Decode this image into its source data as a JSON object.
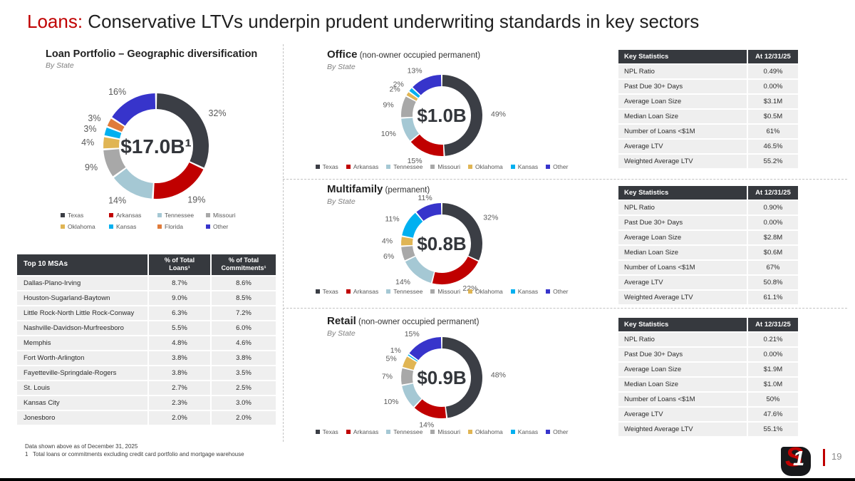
{
  "title": {
    "prefix": "Loans:",
    "rest": " Conservative LTVs underpin prudent underwriting standards in key sectors"
  },
  "portfolio": {
    "title": "Loan Portfolio – Geographic diversification",
    "subtitle": "By State",
    "chart": {
      "type": "donut",
      "center_label": "$17.0B¹",
      "series": [
        {
          "name": "Texas",
          "pct": 32,
          "color": "#3B3E45"
        },
        {
          "name": "Arkansas",
          "pct": 19,
          "color": "#C00000"
        },
        {
          "name": "Tennessee",
          "pct": 14,
          "color": "#A5C8D4"
        },
        {
          "name": "Missouri",
          "pct": 9,
          "color": "#A8A8A8"
        },
        {
          "name": "Oklahoma",
          "pct": 4,
          "color": "#E0B554"
        },
        {
          "name": "Kansas",
          "pct": 3,
          "color": "#00B0F0"
        },
        {
          "name": "Florida",
          "pct": 3,
          "color": "#E07B3A"
        },
        {
          "name": "Other",
          "pct": 16,
          "color": "#3734CB"
        }
      ]
    }
  },
  "msa_table": {
    "headers": [
      "Top 10 MSAs",
      "% of Total Loans¹",
      "% of Total Commitments¹"
    ],
    "rows": [
      [
        "Dallas-Plano-Irving",
        "8.7%",
        "8.6%"
      ],
      [
        "Houston-Sugarland-Baytown",
        "9.0%",
        "8.5%"
      ],
      [
        "Little Rock-North Little Rock-Conway",
        "6.3%",
        "7.2%"
      ],
      [
        "Nashville-Davidson-Murfreesboro",
        "5.5%",
        "6.0%"
      ],
      [
        "Memphis",
        "4.8%",
        "4.6%"
      ],
      [
        "Fort Worth-Arlington",
        "3.8%",
        "3.8%"
      ],
      [
        "Fayetteville-Springdale-Rogers",
        "3.8%",
        "3.5%"
      ],
      [
        "St. Louis",
        "2.7%",
        "2.5%"
      ],
      [
        "Kansas City",
        "2.3%",
        "3.0%"
      ],
      [
        "Jonesboro",
        "2.0%",
        "2.0%"
      ]
    ]
  },
  "sections": [
    {
      "title": "Office",
      "title_suffix": " (non-owner occupied permanent)",
      "subtitle": "By State",
      "chart": {
        "type": "donut",
        "center_label": "$1.0B",
        "series": [
          {
            "name": "Texas",
            "pct": 49,
            "color": "#3B3E45"
          },
          {
            "name": "Arkansas",
            "pct": 15,
            "color": "#C00000"
          },
          {
            "name": "Tennessee",
            "pct": 10,
            "color": "#A5C8D4"
          },
          {
            "name": "Missouri",
            "pct": 9,
            "color": "#A8A8A8"
          },
          {
            "name": "Oklahoma",
            "pct": 2,
            "color": "#E0B554"
          },
          {
            "name": "Kansas",
            "pct": 2,
            "color": "#00B0F0"
          },
          {
            "name": "Other",
            "pct": 13,
            "color": "#3734CB"
          }
        ]
      },
      "stats": {
        "headers": [
          "Key Statistics",
          "At 12/31/25"
        ],
        "rows": [
          [
            "NPL Ratio",
            "0.49%"
          ],
          [
            "Past Due 30+ Days",
            "0.00%"
          ],
          [
            "Average Loan Size",
            "$3.1M"
          ],
          [
            "Median Loan Size",
            "$0.5M"
          ],
          [
            "Number of Loans <$1M",
            "61%"
          ],
          [
            "Average LTV",
            "46.5%"
          ],
          [
            "Weighted Average LTV",
            "55.2%"
          ]
        ]
      }
    },
    {
      "title": "Multifamily",
      "title_suffix": " (permanent)",
      "subtitle": "By State",
      "chart": {
        "type": "donut",
        "center_label": "$0.8B",
        "series": [
          {
            "name": "Texas",
            "pct": 32,
            "color": "#3B3E45"
          },
          {
            "name": "Arkansas",
            "pct": 22,
            "color": "#C00000"
          },
          {
            "name": "Tennessee",
            "pct": 14,
            "color": "#A5C8D4"
          },
          {
            "name": "Missouri",
            "pct": 6,
            "color": "#A8A8A8"
          },
          {
            "name": "Oklahoma",
            "pct": 4,
            "color": "#E0B554"
          },
          {
            "name": "Kansas",
            "pct": 11,
            "color": "#00B0F0"
          },
          {
            "name": "Other",
            "pct": 11,
            "color": "#3734CB"
          }
        ]
      },
      "stats": {
        "headers": [
          "Key Statistics",
          "At 12/31/25"
        ],
        "rows": [
          [
            "NPL Ratio",
            "0.90%"
          ],
          [
            "Past Due 30+ Days",
            "0.00%"
          ],
          [
            "Average Loan Size",
            "$2.8M"
          ],
          [
            "Median Loan Size",
            "$0.6M"
          ],
          [
            "Number of Loans <$1M",
            "67%"
          ],
          [
            "Average LTV",
            "50.8%"
          ],
          [
            "Weighted Average LTV",
            "61.1%"
          ]
        ]
      }
    },
    {
      "title": "Retail",
      "title_suffix": " (non-owner occupied permanent)",
      "subtitle": "By State",
      "chart": {
        "type": "donut",
        "center_label": "$0.9B",
        "series": [
          {
            "name": "Texas",
            "pct": 48,
            "color": "#3B3E45"
          },
          {
            "name": "Arkansas",
            "pct": 14,
            "color": "#C00000"
          },
          {
            "name": "Tennessee",
            "pct": 10,
            "color": "#A5C8D4"
          },
          {
            "name": "Missouri",
            "pct": 7,
            "color": "#A8A8A8"
          },
          {
            "name": "Oklahoma",
            "pct": 5,
            "color": "#E0B554"
          },
          {
            "name": "Kansas",
            "pct": 1,
            "color": "#00B0F0"
          },
          {
            "name": "Other",
            "pct": 15,
            "color": "#3734CB"
          }
        ]
      },
      "stats": {
        "headers": [
          "Key Statistics",
          "At 12/31/25"
        ],
        "rows": [
          [
            "NPL Ratio",
            "0.21%"
          ],
          [
            "Past Due 30+ Days",
            "0.00%"
          ],
          [
            "Average Loan Size",
            "$1.9M"
          ],
          [
            "Median Loan Size",
            "$1.0M"
          ],
          [
            "Number of Loans <$1M",
            "50%"
          ],
          [
            "Average LTV",
            "47.6%"
          ],
          [
            "Weighted Average LTV",
            "55.1%"
          ]
        ]
      }
    }
  ],
  "footnotes": {
    "line1": "Data shown above as of December 31, 2025",
    "line2": "1   Total loans or commitments excluding credit card portfolio and mortgage warehouse"
  },
  "page_number": "19",
  "logo": {
    "s": "S",
    "one": "1"
  },
  "chart_data": [
    {
      "type": "pie",
      "title": "Loan Portfolio – Geographic diversification (By State)",
      "center_label": "$17.0B",
      "categories": [
        "Texas",
        "Arkansas",
        "Tennessee",
        "Missouri",
        "Oklahoma",
        "Kansas",
        "Florida",
        "Other"
      ],
      "values": [
        32,
        19,
        14,
        9,
        4,
        3,
        3,
        16
      ],
      "unit": "%",
      "legend_position": "bottom"
    },
    {
      "type": "pie",
      "title": "Office (non-owner occupied permanent) By State",
      "center_label": "$1.0B",
      "categories": [
        "Texas",
        "Arkansas",
        "Tennessee",
        "Missouri",
        "Oklahoma",
        "Kansas",
        "Other"
      ],
      "values": [
        49,
        15,
        10,
        9,
        2,
        2,
        13
      ],
      "unit": "%",
      "legend_position": "bottom"
    },
    {
      "type": "pie",
      "title": "Multifamily (permanent) By State",
      "center_label": "$0.8B",
      "categories": [
        "Texas",
        "Arkansas",
        "Tennessee",
        "Missouri",
        "Oklahoma",
        "Kansas",
        "Other"
      ],
      "values": [
        32,
        22,
        14,
        6,
        4,
        11,
        11
      ],
      "unit": "%",
      "legend_position": "bottom"
    },
    {
      "type": "pie",
      "title": "Retail (non-owner occupied permanent) By State",
      "center_label": "$0.9B",
      "categories": [
        "Texas",
        "Arkansas",
        "Tennessee",
        "Missouri",
        "Oklahoma",
        "Kansas",
        "Other"
      ],
      "values": [
        48,
        14,
        10,
        7,
        5,
        1,
        15
      ],
      "unit": "%",
      "legend_position": "bottom"
    }
  ]
}
